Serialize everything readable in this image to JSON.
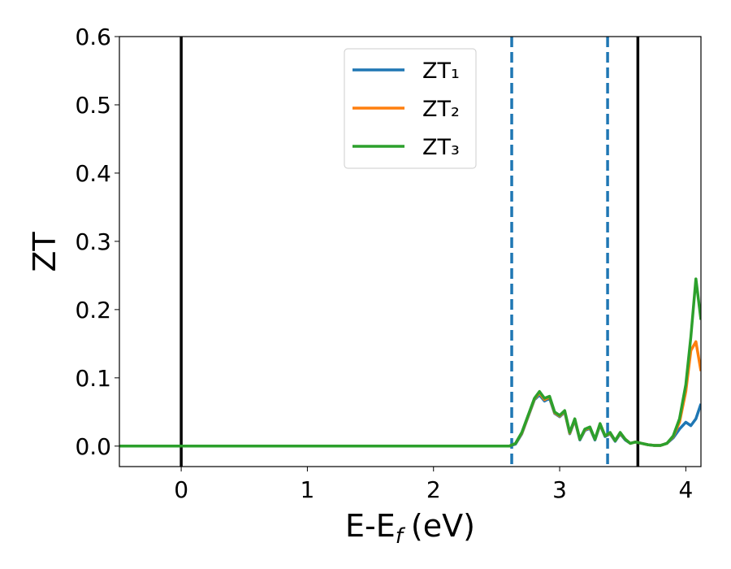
{
  "chart_data": {
    "type": "line",
    "x_label": {
      "main": "E-E",
      "sub": "f",
      "unit": "(eV)"
    },
    "y_label": "ZT",
    "x": [
      -0.49,
      2.6,
      2.65,
      2.7,
      2.75,
      2.8,
      2.84,
      2.88,
      2.92,
      2.96,
      3.0,
      3.04,
      3.08,
      3.12,
      3.16,
      3.2,
      3.24,
      3.28,
      3.32,
      3.36,
      3.4,
      3.44,
      3.48,
      3.52,
      3.56,
      3.6,
      3.65,
      3.7,
      3.75,
      3.8,
      3.85,
      3.9,
      3.95,
      4.0,
      4.04,
      4.08,
      4.12
    ],
    "series": [
      {
        "name": "ZT₁",
        "color": "#1f77b4",
        "values": [
          0,
          0,
          0.003,
          0.018,
          0.043,
          0.068,
          0.075,
          0.066,
          0.07,
          0.048,
          0.043,
          0.05,
          0.018,
          0.038,
          0.009,
          0.023,
          0.026,
          0.009,
          0.031,
          0.014,
          0.018,
          0.007,
          0.018,
          0.009,
          0.004,
          0.006,
          0.004,
          0.002,
          0.001,
          0.001,
          0.004,
          0.012,
          0.025,
          0.035,
          0.03,
          0.04,
          0.062
        ]
      },
      {
        "name": "ZT₂",
        "color": "#ff7f0e",
        "values": [
          0,
          0,
          0.004,
          0.019,
          0.044,
          0.069,
          0.078,
          0.068,
          0.072,
          0.049,
          0.044,
          0.051,
          0.019,
          0.039,
          0.01,
          0.024,
          0.027,
          0.01,
          0.032,
          0.015,
          0.019,
          0.008,
          0.019,
          0.01,
          0.004,
          0.006,
          0.004,
          0.002,
          0.001,
          0.001,
          0.004,
          0.014,
          0.035,
          0.08,
          0.14,
          0.153,
          0.11
        ]
      },
      {
        "name": "ZT₃",
        "color": "#2ca02c",
        "values": [
          0,
          0,
          0.004,
          0.02,
          0.045,
          0.07,
          0.08,
          0.07,
          0.073,
          0.05,
          0.045,
          0.052,
          0.02,
          0.04,
          0.01,
          0.025,
          0.028,
          0.01,
          0.033,
          0.015,
          0.02,
          0.008,
          0.02,
          0.01,
          0.004,
          0.006,
          0.004,
          0.002,
          0.001,
          0.001,
          0.004,
          0.015,
          0.04,
          0.09,
          0.16,
          0.245,
          0.185
        ]
      }
    ],
    "vlines": [
      {
        "x": 0,
        "color": "#000000",
        "style": "solid"
      },
      {
        "x": 3.62,
        "color": "#000000",
        "style": "solid"
      },
      {
        "x": 2.62,
        "color": "#1f77b4",
        "style": "dashed"
      },
      {
        "x": 3.38,
        "color": "#1f77b4",
        "style": "dashed"
      }
    ],
    "xlim": [
      -0.49,
      4.12
    ],
    "ylim": [
      -0.03,
      0.6
    ],
    "xticks": [
      0,
      1,
      2,
      3,
      4
    ],
    "yticks": [
      {
        "value": 0,
        "label": "0.0"
      },
      0.1,
      0.2,
      0.3,
      0.4,
      0.5,
      0.6
    ],
    "legend": "upper center"
  }
}
